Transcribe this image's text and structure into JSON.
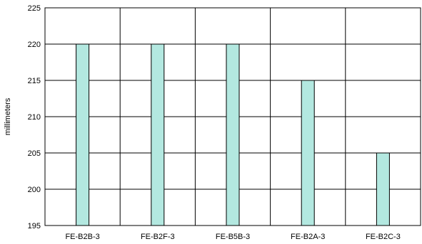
{
  "chart_data": {
    "type": "bar",
    "categories": [
      "FE-B2B-3",
      "FE-B2F-3",
      "FE-B5B-3",
      "FE-B2A-3",
      "FE-B2C-3"
    ],
    "values": [
      220,
      220,
      220,
      215,
      205
    ],
    "title": "",
    "xlabel": "",
    "ylabel": "millimeters",
    "ylim": [
      195,
      225
    ],
    "yticks": [
      195,
      200,
      205,
      210,
      215,
      220,
      225
    ],
    "grid": true,
    "bar_color": "#b3e8e0",
    "bar_edge_color": "#000000"
  }
}
